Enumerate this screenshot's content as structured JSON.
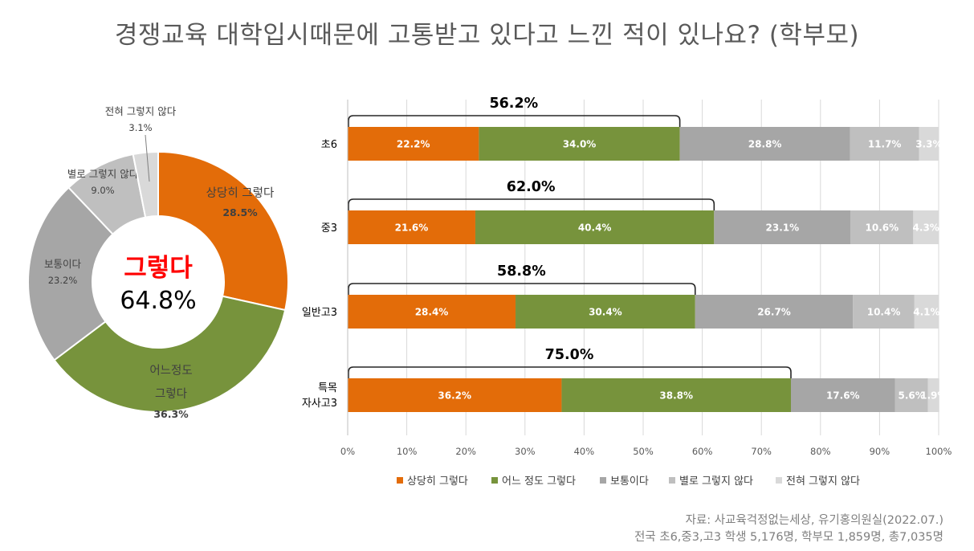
{
  "title": "경쟁교육 대학입시때문에 고통받고 있다고 느낀 적이 있나요? (학부모)",
  "colors": {
    "c1": "#e36c09",
    "c2": "#77933c",
    "c3": "#a6a6a6",
    "c4": "#bfbfbf",
    "c5": "#d9d9d9",
    "center_red": "#ff0000"
  },
  "chart_data": [
    {
      "type": "pie",
      "variant": "donut",
      "center_label": "그렇다",
      "center_value": "64.8%",
      "slices": [
        {
          "label": "상당히 그렇다",
          "lines": [
            "상당히 그렇다"
          ],
          "value": 28.5,
          "pct": "28.5%",
          "color_key": "c1"
        },
        {
          "label": "어느정도 그렇다",
          "lines": [
            "어느정도",
            "그렇다"
          ],
          "value": 36.3,
          "pct": "36.3%",
          "color_key": "c2"
        },
        {
          "label": "보통이다",
          "lines": [
            "보통이다"
          ],
          "value": 23.2,
          "pct": "23.2%",
          "color_key": "c3"
        },
        {
          "label": "별로 그렇지 않다",
          "lines": [
            "별로 그렇지 않다"
          ],
          "value": 9.0,
          "pct": "9.0%",
          "color_key": "c4"
        },
        {
          "label": "전혀 그렇지 않다",
          "lines": [
            "전혀 그렇지 않다"
          ],
          "value": 3.1,
          "pct": "3.1%",
          "color_key": "c5"
        }
      ]
    },
    {
      "type": "bar",
      "orientation": "horizontal",
      "stacked": "percent",
      "categories": [
        [
          "초6"
        ],
        [
          "중3"
        ],
        [
          "일반고3"
        ],
        [
          "특목",
          "자사고3"
        ]
      ],
      "series": [
        {
          "name": "상당히 그렇다",
          "color_key": "c1",
          "values": [
            22.2,
            21.6,
            28.4,
            36.2
          ]
        },
        {
          "name": "어느 정도 그렇다",
          "color_key": "c2",
          "values": [
            34.0,
            40.4,
            30.4,
            38.8
          ]
        },
        {
          "name": "보통이다",
          "color_key": "c3",
          "values": [
            28.8,
            23.1,
            26.7,
            17.6
          ]
        },
        {
          "name": "별로 그렇지 않다",
          "color_key": "c4",
          "values": [
            11.7,
            10.6,
            10.4,
            5.6
          ]
        },
        {
          "name": "전혀 그렇지 않다",
          "color_key": "c5",
          "values": [
            3.3,
            4.3,
            4.1,
            1.9
          ]
        }
      ],
      "bracket_labels": [
        "56.2%",
        "62.0%",
        "58.8%",
        "75.0%"
      ],
      "xlim": [
        0,
        100
      ],
      "x_ticks": [
        "0%",
        "10%",
        "20%",
        "30%",
        "40%",
        "50%",
        "60%",
        "70%",
        "80%",
        "90%",
        "100%"
      ],
      "legend": "bottom"
    }
  ],
  "source": {
    "line1": "자료: 사교육걱정없는세상, 유기홍의원실(2022.07.)",
    "line2": "전국 초6,중3,고3 학생 5,176명, 학부모 1,859명, 총7,035명"
  }
}
